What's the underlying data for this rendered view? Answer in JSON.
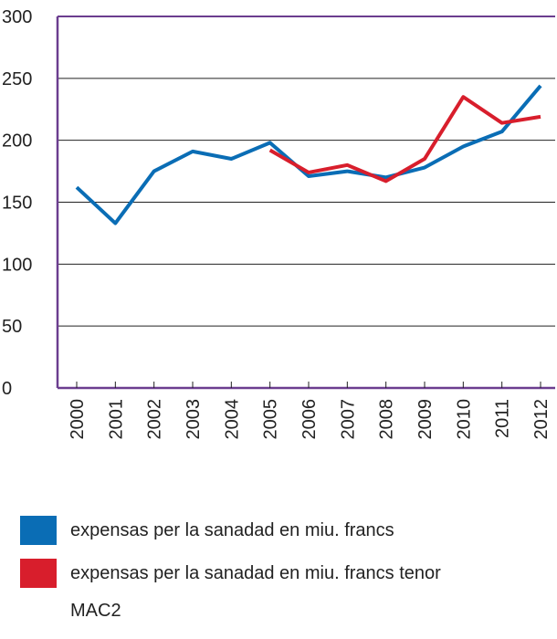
{
  "chart_data": {
    "type": "line",
    "categories": [
      "2000",
      "2001",
      "2002",
      "2003",
      "2004",
      "2005",
      "2006",
      "2007",
      "2008",
      "2009",
      "2010",
      "2011",
      "2012"
    ],
    "series": [
      {
        "name": "expensas per la sanadad en miu. francs",
        "color": "#0a6db5",
        "values": [
          162,
          133,
          175,
          191,
          185,
          198,
          171,
          175,
          170,
          178,
          195,
          207,
          244
        ]
      },
      {
        "name": "expensas per la sanadad en miu. francs tenor MAC2",
        "color": "#d81e2c",
        "values": [
          null,
          null,
          null,
          null,
          null,
          192,
          174,
          180,
          167,
          185,
          235,
          214,
          219
        ]
      }
    ],
    "ylim": [
      0,
      300
    ],
    "yticks": [
      0,
      50,
      100,
      150,
      200,
      250,
      300
    ],
    "grid": true
  }
}
